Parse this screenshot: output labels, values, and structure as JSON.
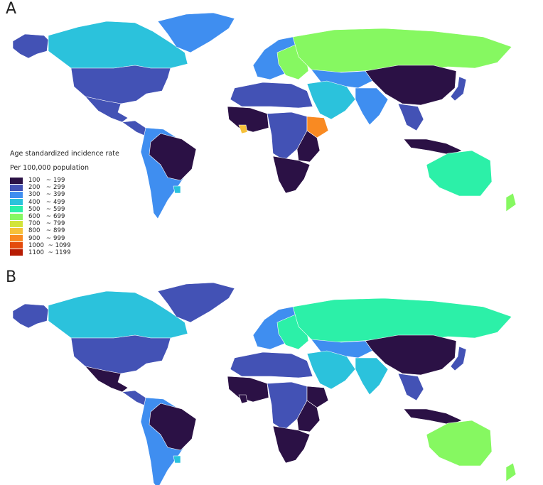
{
  "figure": {
    "panels": [
      {
        "label": "A"
      },
      {
        "label": "B"
      }
    ]
  },
  "legend": {
    "title": "Age standardized incidence rate",
    "subtitle": "Per 100,000 population",
    "items": [
      {
        "label": "100   ~ 199",
        "color": "#2b1145"
      },
      {
        "label": "200   ~ 299",
        "color": "#4352b5"
      },
      {
        "label": "300   ~ 399",
        "color": "#3f8ef0"
      },
      {
        "label": "400   ~ 499",
        "color": "#2bc2dc"
      },
      {
        "label": "500   ~ 599",
        "color": "#2cf0a8"
      },
      {
        "label": "600   ~ 699",
        "color": "#86f861"
      },
      {
        "label": "700   ~ 799",
        "color": "#d2e43a"
      },
      {
        "label": "800   ~ 899",
        "color": "#f6c13a"
      },
      {
        "label": "900   ~ 999",
        "color": "#f98a22"
      },
      {
        "label": "1000  ~ 1099",
        "color": "#e44b0c"
      },
      {
        "label": "1100  ~ 1199",
        "color": "#b71c03"
      }
    ]
  },
  "regions_A": {
    "canada": "#2bc2dc",
    "alaska": "#4352b5",
    "greenland": "#3f8ef0",
    "usa": "#4352b5",
    "mexico": "#4352b5",
    "central_america": "#4352b5",
    "south_america": "#3f8ef0",
    "brazil": "#2b1145",
    "europe": "#3f8ef0",
    "east_europe": "#86f861",
    "russia": "#86f861",
    "north_africa": "#4352b5",
    "west_africa": "#2b1145",
    "central_africa": "#4352b5",
    "ethiopia": "#f98a22",
    "sierra_leone": "#f6c13a",
    "east_africa": "#2b1145",
    "southern_africa": "#2b1145",
    "middle_east": "#2bc2dc",
    "central_asia": "#3f8ef0",
    "india": "#3f8ef0",
    "china": "#2b1145",
    "se_asia": "#4352b5",
    "japan": "#4352b5",
    "indonesia": "#2b1145",
    "australia": "#2cf0a8",
    "new_zealand": "#86f861",
    "uruguay": "#2bc2dc"
  },
  "regions_B": {
    "canada": "#2bc2dc",
    "alaska": "#4352b5",
    "greenland": "#4352b5",
    "usa": "#4352b5",
    "mexico": "#2b1145",
    "central_america": "#4352b5",
    "south_america": "#3f8ef0",
    "brazil": "#2b1145",
    "europe": "#3f8ef0",
    "east_europe": "#2cf0a8",
    "russia": "#2cf0a8",
    "north_africa": "#4352b5",
    "west_africa": "#2b1145",
    "central_africa": "#4352b5",
    "ethiopia": "#2b1145",
    "sierra_leone": "#2b1145",
    "east_africa": "#2b1145",
    "southern_africa": "#2b1145",
    "middle_east": "#2bc2dc",
    "central_asia": "#3f8ef0",
    "india": "#2bc2dc",
    "china": "#2b1145",
    "se_asia": "#4352b5",
    "japan": "#4352b5",
    "indonesia": "#2b1145",
    "australia": "#86f861",
    "new_zealand": "#86f861",
    "uruguay": "#2bc2dc"
  }
}
